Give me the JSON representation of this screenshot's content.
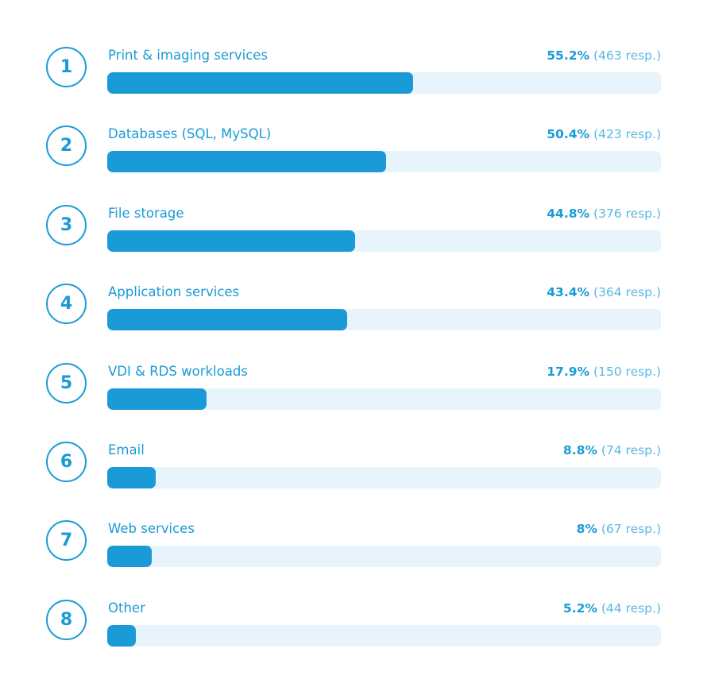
{
  "chart_data": {
    "type": "bar",
    "orientation": "horizontal",
    "categories": [
      "Print & imaging services",
      "Databases (SQL, MySQL)",
      "File storage",
      "Application services",
      "VDI & RDS workloads",
      "Email",
      "Web services",
      "Other"
    ],
    "ranks": [
      "1",
      "2",
      "3",
      "4",
      "5",
      "6",
      "7",
      "8"
    ],
    "values": [
      55.2,
      50.4,
      44.8,
      43.4,
      17.9,
      8.8,
      8,
      5.2
    ],
    "value_labels": [
      "55.2%",
      "50.4%",
      "44.8%",
      "43.4%",
      "17.9%",
      "8.8%",
      "8%",
      "5.2%"
    ],
    "responses": [
      463,
      423,
      376,
      364,
      150,
      74,
      67,
      44
    ],
    "response_labels": [
      "(463 resp.)",
      "(423 resp.)",
      "(376 resp.)",
      "(364 resp.)",
      "(150 resp.)",
      "(74 resp.)",
      "(67 resp.)",
      "(44 resp.)"
    ],
    "xlim": [
      0,
      100
    ],
    "grid": false,
    "legend": "none",
    "colors": {
      "bar": "#1a9bd7",
      "track": "#e8f4fc",
      "text": "#1a9bd7",
      "muted": "#5bb8e4"
    }
  }
}
